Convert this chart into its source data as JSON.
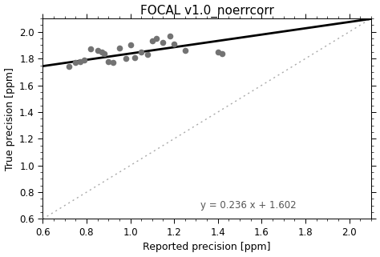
{
  "title": "FOCAL v1.0_noerrcorr",
  "xlabel": "Reported precision [ppm]",
  "ylabel": "True precision [ppm]",
  "xlim": [
    0.6,
    2.1
  ],
  "ylim": [
    0.6,
    2.1
  ],
  "xticks": [
    0.6,
    0.8,
    1.0,
    1.2,
    1.4,
    1.6,
    1.8,
    2.0
  ],
  "yticks": [
    0.6,
    0.8,
    1.0,
    1.2,
    1.4,
    1.6,
    1.8,
    2.0
  ],
  "scatter_x": [
    0.72,
    0.75,
    0.77,
    0.79,
    0.82,
    0.85,
    0.87,
    0.88,
    0.9,
    0.92,
    0.95,
    0.98,
    1.0,
    1.02,
    1.05,
    1.08,
    1.1,
    1.12,
    1.15,
    1.18,
    1.2,
    1.25,
    1.4,
    1.42
  ],
  "scatter_y": [
    1.74,
    1.77,
    1.78,
    1.79,
    1.87,
    1.86,
    1.85,
    1.84,
    1.78,
    1.77,
    1.88,
    1.8,
    1.9,
    1.81,
    1.85,
    1.83,
    1.93,
    1.95,
    1.92,
    1.97,
    1.91,
    1.86,
    1.85,
    1.84
  ],
  "fit_slope": 0.236,
  "fit_intercept": 1.602,
  "equation_text": "y = 0.236 x + 1.602",
  "equation_x": 1.32,
  "equation_y": 0.665,
  "dot_color": "#737373",
  "dot_size": 30,
  "fit_line_color": "#000000",
  "identity_line_color": "#aaaaaa",
  "background_color": "#ffffff",
  "title_fontsize": 11,
  "label_fontsize": 9,
  "tick_fontsize": 8.5,
  "eq_fontsize": 8.5
}
